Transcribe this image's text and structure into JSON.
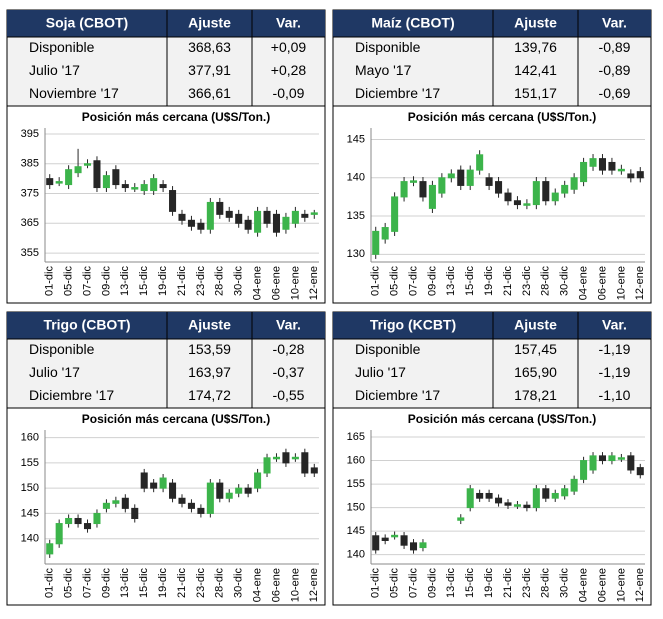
{
  "tables": [
    {
      "header": [
        "Soja (CBOT)",
        "Ajuste",
        "Var."
      ],
      "rows": [
        [
          "Disponible",
          "368,63",
          "+0,09"
        ],
        [
          "Julio '17",
          "377,91",
          "+0,28"
        ],
        [
          "Noviembre '17",
          "366,61",
          "-0,09"
        ]
      ]
    },
    {
      "header": [
        "Maíz (CBOT)",
        "Ajuste",
        "Var."
      ],
      "rows": [
        [
          "Disponible",
          "139,76",
          "-0,89"
        ],
        [
          "Mayo '17",
          "142,41",
          "-0,89"
        ],
        [
          "Diciembre '17",
          "151,17",
          "-0,69"
        ]
      ]
    },
    {
      "header": [
        "Trigo (CBOT)",
        "Ajuste",
        "Var."
      ],
      "rows": [
        [
          "Disponible",
          "153,59",
          "-0,28"
        ],
        [
          "Julio '17",
          "163,97",
          "-0,37"
        ],
        [
          "Diciembre '17",
          "174,72",
          "-0,55"
        ]
      ]
    },
    {
      "header": [
        "Trigo (KCBT)",
        "Ajuste",
        "Var."
      ],
      "rows": [
        [
          "Disponible",
          "157,45",
          "-1,19"
        ],
        [
          "Julio '17",
          "165,90",
          "-1,19"
        ],
        [
          "Diciembre '17",
          "178,21",
          "-1,10"
        ]
      ]
    }
  ],
  "chart_data": [
    {
      "type": "candlestick",
      "title": "Posición más cercana (U$S/Ton.)",
      "categories": [
        "01-dic",
        null,
        "05-dic",
        null,
        "07-dic",
        null,
        "09-dic",
        null,
        "13-dic",
        null,
        "15-dic",
        null,
        "19-dic",
        null,
        "21-dic",
        null,
        "23-dic",
        null,
        "28-dic",
        null,
        "30-dic",
        null,
        "04-ene",
        null,
        "06-ene",
        null,
        "10-ene",
        null,
        "12-ene"
      ],
      "open": [
        380,
        379,
        378,
        382,
        385,
        386,
        377,
        383,
        378,
        377,
        376,
        376,
        378,
        376,
        368,
        366,
        365,
        363,
        372,
        369,
        368,
        366,
        362,
        369,
        368,
        363,
        365,
        368,
        368
      ],
      "high": [
        381.5,
        380.5,
        384.5,
        390,
        386.5,
        387.5,
        382.5,
        384.5,
        379.5,
        378.5,
        379.5,
        381.5,
        379.5,
        377.5,
        369.5,
        367.5,
        366.5,
        373.5,
        373.5,
        370.5,
        369.5,
        367.5,
        370.5,
        370.5,
        369.5,
        368.5,
        370.5,
        369.5,
        369.5
      ],
      "low": [
        376.5,
        377.5,
        376.5,
        380.5,
        383.5,
        375.5,
        375.5,
        376.5,
        375.5,
        375.5,
        374.5,
        374.5,
        375.5,
        367.5,
        364.5,
        362.5,
        361.5,
        361.5,
        366.5,
        365.5,
        363.5,
        361.5,
        360.5,
        363.5,
        360.5,
        361.5,
        363.5,
        365.5,
        366.5
      ],
      "close": [
        378,
        379,
        383,
        384,
        385,
        377,
        381,
        378,
        377,
        377,
        378,
        380,
        377,
        369,
        366,
        364,
        363,
        372,
        368,
        367,
        365,
        363,
        369,
        365,
        362,
        367,
        369,
        367,
        368.5
      ],
      "up_color": "#3cb44b",
      "down_color": "#262626",
      "ylim": [
        352,
        397
      ],
      "yticks": [
        355,
        365,
        375,
        385,
        395
      ],
      "grid": true
    },
    {
      "type": "candlestick",
      "title": "Posición más cercana (U$S/Ton.)",
      "categories": [
        "01-dic",
        null,
        "05-dic",
        null,
        "07-dic",
        null,
        "09-dic",
        null,
        "13-dic",
        null,
        "15-dic",
        null,
        "19-dic",
        null,
        "21-dic",
        null,
        "23-dic",
        null,
        "28-dic",
        null,
        "30-dic",
        null,
        "04-ene",
        null,
        "06-ene",
        null,
        "10-ene",
        null,
        "12-ene"
      ],
      "open": [
        130,
        132,
        133,
        137.5,
        139.5,
        139.5,
        136,
        138,
        140,
        141,
        139,
        141,
        140,
        139.5,
        138,
        137,
        136.5,
        136.5,
        139.5,
        137,
        138,
        138.5,
        139.5,
        141.5,
        142.5,
        142,
        141,
        140.5,
        140.8
      ],
      "high": [
        133.6,
        134.1,
        138.1,
        140.1,
        140.2,
        140.1,
        139.6,
        140.6,
        141.1,
        141.6,
        141.6,
        143.6,
        140.6,
        140.1,
        138.6,
        137.6,
        137.2,
        140.1,
        140.1,
        138.6,
        139.6,
        140.6,
        142.6,
        143.1,
        143.1,
        142.6,
        141.7,
        141.1,
        141.4
      ],
      "low": [
        129.4,
        131.4,
        132.4,
        136.9,
        138.9,
        136.9,
        135.4,
        137.4,
        139.4,
        138.4,
        138.4,
        140.4,
        138.4,
        137.4,
        136.4,
        135.9,
        135.9,
        135.9,
        136.4,
        136.4,
        137.4,
        137.9,
        138.9,
        140.9,
        140.4,
        140.4,
        140.4,
        139.4,
        139.4
      ],
      "close": [
        133,
        133.5,
        137.5,
        139.5,
        139.6,
        137.5,
        139,
        140,
        140.5,
        139,
        141,
        143,
        139,
        138,
        137,
        136.5,
        136.6,
        139.5,
        137,
        138,
        139,
        140,
        142,
        142.5,
        141,
        141,
        141.1,
        140,
        140
      ],
      "up_color": "#3cb44b",
      "down_color": "#262626",
      "ylim": [
        129,
        146.5
      ],
      "yticks": [
        130,
        135,
        140,
        145
      ],
      "grid": true
    },
    {
      "type": "candlestick",
      "title": "Posición más cercana (U$S/Ton.)",
      "categories": [
        "01-dic",
        null,
        "05-dic",
        null,
        "07-dic",
        null,
        "09-dic",
        null,
        "13-dic",
        null,
        "15-dic",
        null,
        "19-dic",
        null,
        "21-dic",
        null,
        "23-dic",
        null,
        "28-dic",
        null,
        "30-dic",
        null,
        "04-ene",
        null,
        "06-ene",
        null,
        "10-ene",
        null,
        "12-ene"
      ],
      "open": [
        137,
        139,
        143,
        144,
        143,
        143,
        146,
        147,
        148,
        146,
        153,
        151,
        150,
        151,
        148,
        147,
        146,
        145,
        151,
        148,
        149,
        150,
        150,
        153,
        156,
        157,
        156,
        157,
        154
      ],
      "high": [
        139.8,
        143.8,
        144.8,
        144.8,
        143.8,
        145.8,
        147.8,
        148.3,
        148.8,
        146.8,
        153.8,
        151.8,
        152.8,
        151.8,
        148.8,
        147.8,
        146.8,
        151.8,
        151.8,
        149.8,
        150.8,
        150.8,
        153.8,
        156.8,
        156.9,
        157.8,
        156.9,
        157.8,
        154.8
      ],
      "low": [
        136.2,
        138.2,
        142.2,
        142.2,
        141.2,
        142.2,
        145.2,
        146.2,
        145.2,
        143.2,
        149.2,
        149.2,
        149.2,
        147.2,
        146.2,
        145.2,
        144.2,
        144.2,
        147.2,
        147.2,
        148.2,
        148.2,
        149.2,
        152.2,
        155.2,
        154.2,
        155.2,
        152.2,
        152.2
      ],
      "close": [
        139,
        143,
        144,
        143,
        142,
        145,
        147,
        147.5,
        146,
        144,
        150,
        150,
        152,
        148,
        147,
        146,
        145,
        151,
        148,
        149,
        150,
        149,
        153,
        156,
        156.1,
        155,
        156.1,
        153,
        153
      ],
      "up_color": "#3cb44b",
      "down_color": "#262626",
      "ylim": [
        135,
        161.5
      ],
      "yticks": [
        140,
        145,
        150,
        155,
        160
      ],
      "grid": true
    },
    {
      "type": "candlestick",
      "title": "Posición más cercana (U$S/Ton.)",
      "categories": [
        "01-dic",
        null,
        "05-dic",
        null,
        "07-dic",
        null,
        "09-dic",
        null,
        "13-dic",
        null,
        "15-dic",
        null,
        "19-dic",
        null,
        "21-dic",
        null,
        "23-dic",
        null,
        "28-dic",
        null,
        "30-dic",
        null,
        "04-ene",
        null,
        "06-ene",
        null,
        "10-ene",
        null,
        "12-ene"
      ],
      "open": [
        144,
        143.5,
        144,
        144,
        142.5,
        141.5,
        null,
        null,
        null,
        147.3,
        150,
        153,
        153,
        152,
        151,
        150.5,
        150.5,
        150,
        154,
        152,
        152.5,
        153.5,
        156,
        158,
        161,
        160,
        160.5,
        161,
        158.5
      ],
      "high": [
        144.8,
        144.3,
        144.9,
        144.8,
        143.3,
        143.3,
        null,
        null,
        null,
        148.6,
        154.8,
        153.8,
        153.8,
        152.8,
        151.8,
        151.4,
        151.3,
        154.8,
        154.8,
        153.8,
        154.8,
        156.8,
        160.8,
        161.8,
        161.8,
        161.8,
        161.4,
        161.8,
        159.3
      ],
      "low": [
        140.2,
        142.2,
        143.2,
        141.2,
        140.2,
        140.7,
        null,
        null,
        null,
        146.5,
        149.2,
        151.2,
        151.2,
        150.2,
        149.7,
        149.7,
        149.2,
        149.2,
        151.2,
        151.2,
        151.7,
        152.7,
        155.2,
        157.2,
        159.2,
        159.2,
        159.7,
        157.2,
        156.2
      ],
      "close": [
        141,
        143,
        144.1,
        142,
        141,
        142.5,
        null,
        null,
        null,
        147.8,
        154,
        152,
        152,
        151,
        150.5,
        150.6,
        150,
        154,
        152,
        153,
        154,
        156,
        160,
        161,
        160,
        161,
        160.6,
        158,
        157
      ],
      "up_color": "#3cb44b",
      "down_color": "#262626",
      "ylim": [
        138,
        166.5
      ],
      "yticks": [
        140,
        145,
        150,
        155,
        160,
        165
      ],
      "grid": true
    }
  ]
}
